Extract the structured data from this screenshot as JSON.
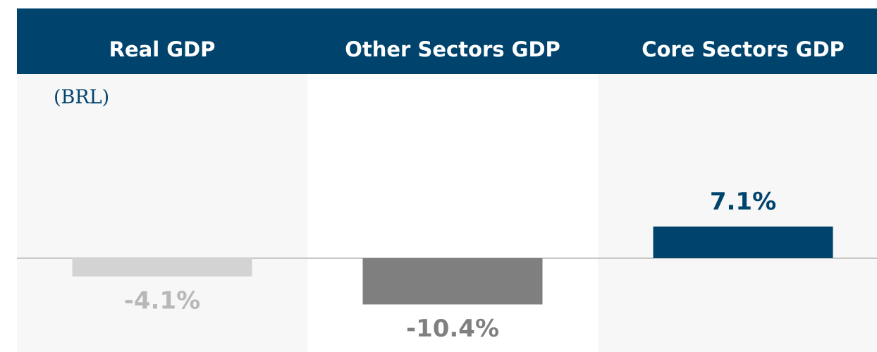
{
  "chart_data": {
    "type": "bar",
    "subtitle": "(BRL)",
    "categories": [
      "Real GDP",
      "Other Sectors GDP",
      "Core Sectors GDP"
    ],
    "values": [
      -4.1,
      -10.4,
      7.1
    ],
    "value_labels": [
      "-4.1%",
      "-10.4%",
      "7.1%"
    ],
    "colors": [
      "#d3d3d3",
      "#7f7f7f",
      "#00446e"
    ],
    "value_label_colors": [
      "#b8b8b8",
      "#808080",
      "#00446e"
    ]
  }
}
